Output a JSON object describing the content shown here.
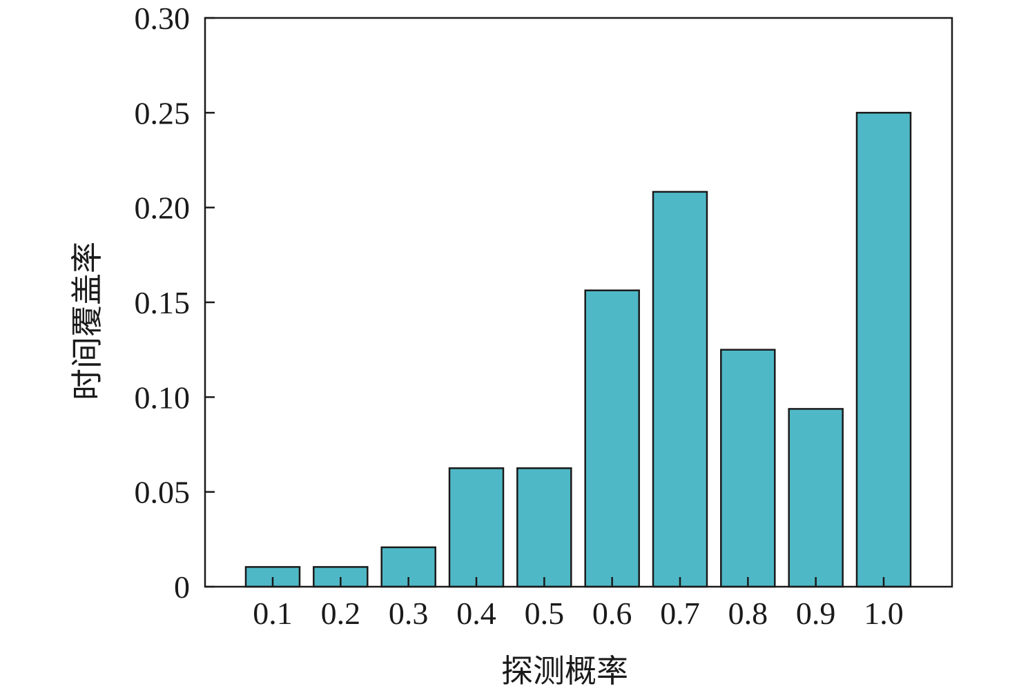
{
  "chart_data": {
    "type": "bar",
    "title": "",
    "xlabel": "探测概率",
    "ylabel": "时间覆盖率",
    "categories": [
      "0.1",
      "0.2",
      "0.3",
      "0.4",
      "0.5",
      "0.6",
      "0.7",
      "0.8",
      "0.9",
      "1.0"
    ],
    "values": [
      0.0104,
      0.0104,
      0.0208,
      0.0625,
      0.0625,
      0.1563,
      0.2083,
      0.125,
      0.0938,
      0.25
    ],
    "ylim": [
      0,
      0.3
    ],
    "yticks": [
      0,
      0.05,
      0.1,
      0.15,
      0.2,
      0.25,
      0.3
    ],
    "ytick_labels": [
      "0",
      "0.05",
      "0.10",
      "0.15",
      "0.20",
      "0.25",
      "0.30"
    ],
    "grid": false,
    "legend": "none",
    "bar_color": "#4fb8c6",
    "bar_edge_color": "#1a1a1a"
  }
}
